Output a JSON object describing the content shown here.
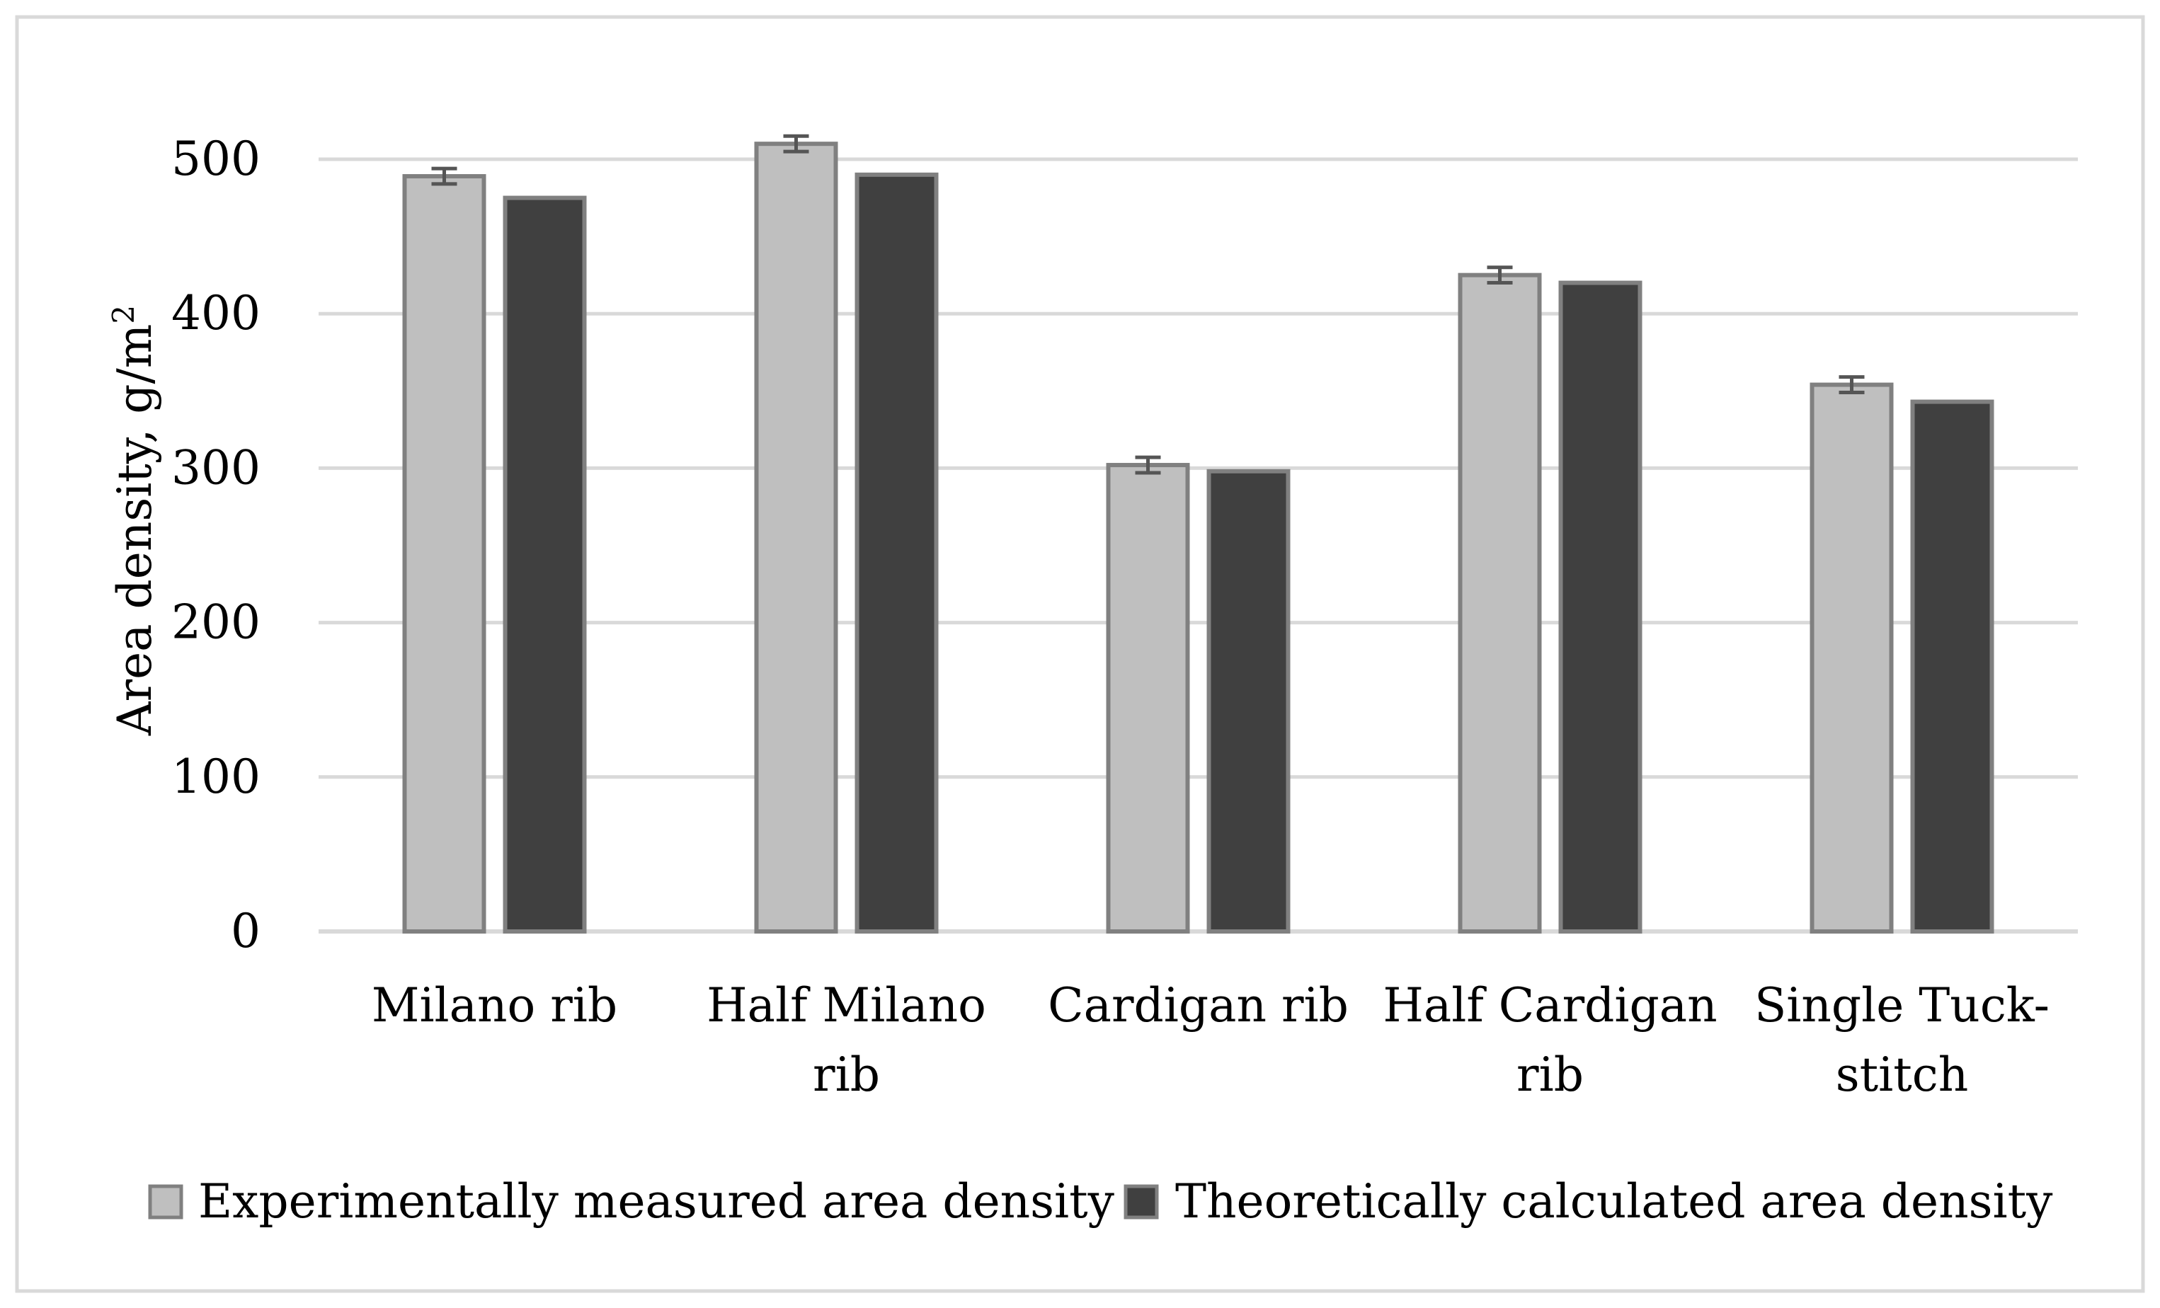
{
  "chart_data": {
    "type": "bar",
    "title": "",
    "xlabel": "",
    "ylabel": "Area density, g/m",
    "ylabel_superscript": "2",
    "ylim": [
      0,
      500
    ],
    "yticks": [
      0,
      100,
      200,
      300,
      400,
      500
    ],
    "grid": true,
    "legend_position": "bottom",
    "categories": [
      [
        "Milano rib"
      ],
      [
        "Half Milano",
        "rib"
      ],
      [
        "Cardigan rib"
      ],
      [
        "Half Cardigan",
        "rib"
      ],
      [
        "Single Tuck-",
        "stitch"
      ]
    ],
    "series": [
      {
        "name": "Experimentally measured area density",
        "values": [
          489,
          510,
          302,
          425,
          354
        ],
        "error": [
          5,
          5,
          5,
          5,
          5
        ],
        "color": "#bfbfbf"
      },
      {
        "name": "Theoretically calculated area density",
        "values": [
          475,
          490,
          298,
          420,
          343
        ],
        "color": "#404040"
      }
    ],
    "colors": {
      "bar_outline": "#808080",
      "grid": "#d9d9d9",
      "frame": "#d9d9d9",
      "error_bar": "#555555"
    }
  }
}
